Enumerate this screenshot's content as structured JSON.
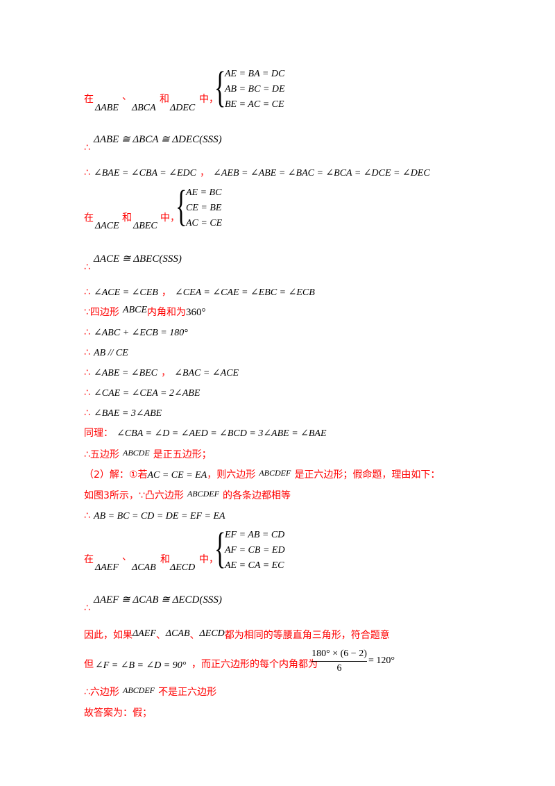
{
  "block1": {
    "zai": "在",
    "dun": "、",
    "he": "和",
    "zhong": "中，",
    "t1": "ΔABE",
    "t2": "ΔBCA",
    "t3": "ΔDEC",
    "eq1": "AE = BA = DC",
    "eq2": "AB = BC = DE",
    "eq3": "BE = AC = CE"
  },
  "line_cong1": {
    "sym": "∴",
    "text": "ΔABE ≅ ΔBCA ≅ ΔDEC(SSS)"
  },
  "line_angles1": {
    "sym": "∴",
    "p1": "∠BAE = ∠CBA = ∠EDC",
    "sep": "，",
    "p2": "∠AEB = ∠ABE = ∠BAC = ∠BCA = ∠DCE = ∠DEC"
  },
  "block2": {
    "zai": "在",
    "he": "和",
    "zhong": "中，",
    "t1": "ΔACE",
    "t2": "ΔBEC",
    "eq1": "AE = BC",
    "eq2": "CE = BE",
    "eq3": "AC = CE"
  },
  "line_cong2": {
    "sym": "∴",
    "text": "ΔACE ≅ ΔBEC(SSS)"
  },
  "line_angles2": {
    "sym": "∴",
    "p1": "∠ACE = ∠CEB",
    "sep": "，",
    "p2": "∠CEA = ∠CAE = ∠EBC = ∠ECB"
  },
  "line_quad": {
    "sym": "∵",
    "pre": "四边形",
    "name": "ABCE",
    "mid": "内角和为",
    "val": "360°"
  },
  "line_sum": {
    "sym": "∴",
    "text": "∠ABC + ∠ECB = 180°"
  },
  "line_par": {
    "sym": "∴",
    "text": "AB // CE"
  },
  "line_eq1": {
    "sym": "∴",
    "p1": "∠ABE = ∠BEC",
    "sep": "，",
    "p2": "∠BAC = ∠ACE"
  },
  "line_eq2": {
    "sym": "∴",
    "text": "∠CAE = ∠CEA = 2∠ABE"
  },
  "line_eq3": {
    "sym": "∴",
    "text": "∠BAE = 3∠ABE"
  },
  "line_same": {
    "pre": "同理：",
    "text": "∠CBA = ∠D = ∠AED = ∠BCD = 3∠ABE = ∠BAE"
  },
  "line_penta": {
    "sym": "∴",
    "pre": "五边形",
    "name": "ABCDE",
    "post": "是正五边形；"
  },
  "line_part2": {
    "pre": "（2）解：①若",
    "cond": "AC = CE = EA",
    "mid": "，则六边形",
    "name": "ABCDEF",
    "post": "是正六边形；假命题，理由如下："
  },
  "line_fig3": {
    "pre": "如图3所示，",
    "sym": "∵",
    "mid": "凸六边形",
    "name": "ABCDEF",
    "post": "的各条边都相等"
  },
  "line_sides": {
    "sym": "∴",
    "text": "AB = BC = CD = DE = EF = EA"
  },
  "block3": {
    "zai": "在",
    "dun": "、",
    "he": "和",
    "zhong": "中，",
    "t1": "ΔAEF",
    "t2": "ΔCAB",
    "t3": "ΔECD",
    "eq1": "EF = AB = CD",
    "eq2": "AF = CB = ED",
    "eq3": "AE = CA = EC"
  },
  "line_cong3": {
    "sym": "∴",
    "text": "ΔAEF ≅ ΔCAB ≅ ΔECD(SSS)"
  },
  "line_thus": {
    "pre": "因此，如果",
    "t1": "ΔAEF",
    "d1": "、",
    "t2": "ΔCAB",
    "d2": "、",
    "t3": "ΔECD",
    "post": "都为相同的等腰直角三角形，符合题意"
  },
  "line_but": {
    "pre": "但",
    "cond": "∠F = ∠B = ∠D = 90°",
    "mid": "，而正六边形的每个内角都为",
    "num": "180° × (6 − 2)",
    "den": "6",
    "res": "= 120°"
  },
  "line_hexa": {
    "sym": "∴",
    "pre": "六边形",
    "name": "ABCDEF",
    "post": "不是正六边形"
  },
  "line_ans": {
    "text": "故答案为：假；"
  }
}
